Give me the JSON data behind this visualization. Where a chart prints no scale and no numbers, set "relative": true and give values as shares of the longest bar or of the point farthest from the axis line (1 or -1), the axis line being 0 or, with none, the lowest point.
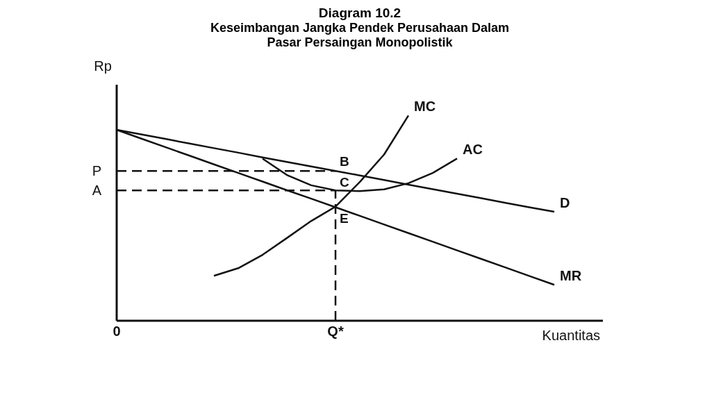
{
  "chart_data": {
    "type": "line",
    "title": "Diagram 10.2",
    "subtitle": "Keseimbangan Jangka Pendek Perusahaan Dalam Pasar Persaingan Monopolistik",
    "xlabel": "Kuantitas",
    "ylabel": "Rp",
    "relative": true,
    "marker": "none",
    "legend": false,
    "grid": false,
    "categories": [
      "0",
      null,
      null,
      null,
      null,
      null,
      null,
      null,
      null,
      "Q*",
      null,
      null,
      null,
      null,
      null,
      null,
      null,
      null,
      null,
      null,
      null
    ],
    "series": [
      {
        "name": "MC",
        "color": "#111111",
        "values": [
          null,
          null,
          null,
          null,
          0.219,
          0.256,
          0.321,
          0.403,
          0.486,
          0.556,
          0.676,
          0.81,
          1,
          null,
          null,
          null,
          null,
          null,
          null,
          null,
          null
        ]
      },
      {
        "name": "AC",
        "color": "#111111",
        "values": [
          null,
          null,
          null,
          null,
          null,
          null,
          0.79,
          0.71,
          0.66,
          0.635,
          0.632,
          0.64,
          0.67,
          0.72,
          0.79,
          null,
          null,
          null,
          null,
          null,
          null
        ]
      },
      {
        "name": "D",
        "color": "#111111",
        "values": [
          0.93,
          0.908,
          0.886,
          0.863,
          0.841,
          0.819,
          0.796,
          0.774,
          0.752,
          0.73,
          0.708,
          0.686,
          0.663,
          0.641,
          0.619,
          0.597,
          0.574,
          0.552,
          0.531,
          null,
          null
        ]
      },
      {
        "name": "MR",
        "color": "#111111",
        "values": [
          0.93,
          0.888,
          0.846,
          0.804,
          0.762,
          0.72,
          0.678,
          0.636,
          0.595,
          0.553,
          0.511,
          0.469,
          0.427,
          0.385,
          0.343,
          0.301,
          0.259,
          0.217,
          0.175,
          null,
          null
        ]
      }
    ],
    "ref_lines": [
      {
        "axis": "y",
        "value": 0.73,
        "label": "P",
        "line_style": "dashed"
      },
      {
        "axis": "y",
        "value": 0.635,
        "label": "A",
        "line_style": "dashed"
      },
      {
        "axis": "x",
        "value": "Q*",
        "line_style": "dashed"
      }
    ],
    "annotations": [
      {
        "text": "B",
        "x": "Q*",
        "y": 0.73
      },
      {
        "text": "C",
        "x": "Q*",
        "y": 0.635
      },
      {
        "text": "E",
        "x": "Q*",
        "y": 0.553
      }
    ]
  }
}
